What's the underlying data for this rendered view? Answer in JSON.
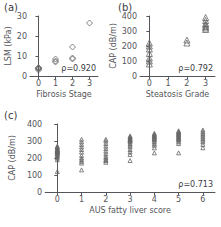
{
  "chart_data": [
    {
      "type": "scatter",
      "title": "(a)",
      "xlabel": "Fibrosis Stage",
      "ylabel": "LSM (kPa)",
      "annotations": [
        "ρ=0.920"
      ],
      "x": [
        0,
        0,
        0,
        0,
        0,
        1,
        1,
        1,
        2,
        2,
        2,
        3
      ],
      "values": [
        3.5,
        4.0,
        3.0,
        3.8,
        4.2,
        7.5,
        8.5,
        7.0,
        9.0,
        14.5,
        8.5,
        26.5
      ],
      "xlim": [
        -0.5,
        3.5
      ],
      "xticks": [
        0,
        1,
        2,
        3
      ],
      "ylim": [
        0,
        30
      ],
      "yticks": [
        0,
        10,
        20,
        30
      ],
      "marker": "diamond",
      "color": "#666666",
      "grid": false
    },
    {
      "type": "scatter",
      "title": "(b)",
      "xlabel": "Steatosis Grade",
      "ylabel": "CAP (dB/m)",
      "annotations": [
        "ρ=0.792"
      ],
      "x": [
        0,
        0,
        0,
        0,
        0,
        0,
        0,
        2,
        2,
        3,
        3,
        3,
        3,
        3,
        3,
        3
      ],
      "values": [
        220,
        200,
        180,
        150,
        120,
        100,
        80,
        220,
        240,
        390,
        370,
        350,
        340,
        330,
        320,
        310
      ],
      "xlim": [
        -0.5,
        3.5
      ],
      "xticks": [
        0,
        1,
        2,
        3
      ],
      "ylim": [
        0,
        400
      ],
      "yticks": [
        0,
        100,
        200,
        300,
        400
      ],
      "marker": "triangle",
      "color": "#666666",
      "grid": false
    },
    {
      "type": "scatter",
      "title": "(c)",
      "xlabel": "AUS fatty liver score",
      "ylabel": "CAP (dB/m)",
      "annotations": [
        "ρ=0.713"
      ],
      "x": [
        0,
        0,
        0,
        0,
        0,
        0,
        0,
        0,
        0,
        0,
        0,
        0,
        0,
        0,
        0,
        0,
        0,
        0,
        0,
        0,
        1,
        1,
        1,
        1,
        1,
        1,
        1,
        1,
        1,
        1,
        1,
        1,
        2,
        2,
        2,
        2,
        2,
        2,
        2,
        2,
        2,
        2,
        2,
        2,
        3,
        3,
        3,
        3,
        3,
        3,
        3,
        3,
        3,
        3,
        3,
        3,
        3,
        3,
        3,
        3,
        4,
        4,
        4,
        4,
        4,
        4,
        4,
        4,
        4,
        4,
        4,
        4,
        4,
        4,
        5,
        5,
        5,
        5,
        5,
        5,
        5,
        5,
        5,
        5,
        5,
        5,
        5,
        5,
        5,
        6,
        6,
        6,
        6,
        6,
        6,
        6,
        6,
        6,
        6
      ],
      "values": [
        270,
        265,
        260,
        255,
        250,
        248,
        245,
        243,
        240,
        238,
        235,
        232,
        230,
        225,
        220,
        215,
        210,
        200,
        190,
        120,
        310,
        295,
        280,
        265,
        250,
        235,
        215,
        200,
        190,
        180,
        170,
        130,
        310,
        300,
        285,
        270,
        255,
        240,
        225,
        210,
        200,
        190,
        185,
        175,
        330,
        325,
        320,
        315,
        310,
        308,
        305,
        300,
        295,
        285,
        275,
        265,
        250,
        235,
        220,
        185,
        345,
        340,
        335,
        330,
        325,
        320,
        315,
        310,
        305,
        295,
        285,
        275,
        260,
        230,
        360,
        355,
        350,
        345,
        340,
        335,
        330,
        325,
        320,
        315,
        310,
        305,
        295,
        285,
        230,
        365,
        355,
        345,
        335,
        325,
        315,
        305,
        295,
        280,
        260
      ],
      "xlim": [
        -0.5,
        6.5
      ],
      "xticks": [
        0,
        1,
        2,
        3,
        4,
        5,
        6
      ],
      "ylim": [
        0,
        400
      ],
      "yticks": [
        0,
        100,
        200,
        300,
        400
      ],
      "marker": "triangle",
      "color": "#666666",
      "grid": false
    }
  ]
}
